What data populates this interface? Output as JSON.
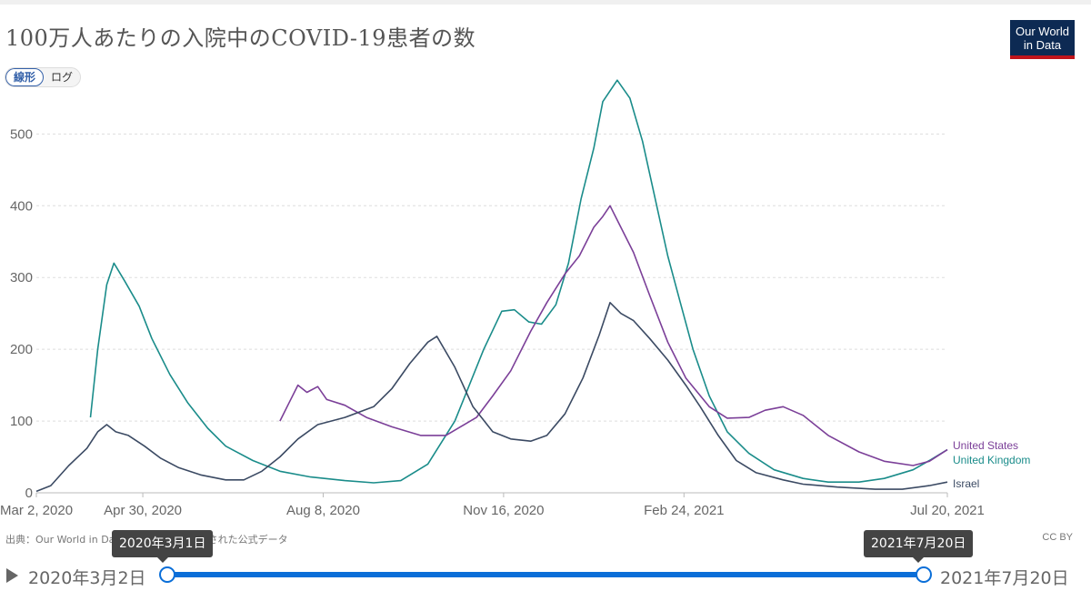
{
  "title": "100万人あたりの入院中のCOVID-19患者の数",
  "logo": {
    "line1": "Our World",
    "line2": "in Data"
  },
  "scale_toggle": {
    "linear": "線形",
    "log": "ログ",
    "selected": "linear"
  },
  "source_text": "出典：Our World in Data による各国の公表された公式データ",
  "license": "CC BY",
  "timeline": {
    "start_label": "2020年3月2日",
    "end_label": "2021年7月20日",
    "start_tooltip": "2020年3月1日",
    "end_tooltip": "2021年7月20日",
    "selection_start_fraction": 0,
    "selection_end_fraction": 1
  },
  "colors": {
    "United Kingdom": "#1a8c8a",
    "United States": "#7b3f98",
    "Israel": "#3b4a63"
  },
  "chart_data": {
    "type": "line",
    "title": "100万人あたりの入院中のCOVID-19患者の数",
    "xlabel": "",
    "ylabel": "",
    "x_type": "date",
    "xlim": [
      "2020-03-02",
      "2021-07-20"
    ],
    "ylim": [
      0,
      560
    ],
    "y_ticks": [
      0,
      100,
      200,
      300,
      400,
      500
    ],
    "x_ticks": [
      {
        "date": "2020-03-02",
        "label": "Mar 2, 2020"
      },
      {
        "date": "2020-04-30",
        "label": "Apr 30, 2020"
      },
      {
        "date": "2020-08-08",
        "label": "Aug 8, 2020"
      },
      {
        "date": "2020-11-16",
        "label": "Nov 16, 2020"
      },
      {
        "date": "2021-02-24",
        "label": "Feb 24, 2021"
      },
      {
        "date": "2021-07-20",
        "label": "Jul 20, 2021"
      }
    ],
    "grid": "horizontal dashed",
    "legend": "right end labels",
    "series": [
      {
        "name": "United Kingdom",
        "points": [
          [
            "2020-04-01",
            105
          ],
          [
            "2020-04-05",
            200
          ],
          [
            "2020-04-10",
            290
          ],
          [
            "2020-04-14",
            320
          ],
          [
            "2020-04-20",
            295
          ],
          [
            "2020-04-28",
            260
          ],
          [
            "2020-05-05",
            215
          ],
          [
            "2020-05-15",
            165
          ],
          [
            "2020-05-25",
            125
          ],
          [
            "2020-06-05",
            90
          ],
          [
            "2020-06-15",
            65
          ],
          [
            "2020-06-30",
            45
          ],
          [
            "2020-07-15",
            30
          ],
          [
            "2020-08-01",
            22
          ],
          [
            "2020-08-20",
            17
          ],
          [
            "2020-09-05",
            14
          ],
          [
            "2020-09-20",
            17
          ],
          [
            "2020-10-05",
            40
          ],
          [
            "2020-10-20",
            100
          ],
          [
            "2020-11-05",
            200
          ],
          [
            "2020-11-15",
            253
          ],
          [
            "2020-11-22",
            255
          ],
          [
            "2020-11-30",
            238
          ],
          [
            "2020-12-07",
            235
          ],
          [
            "2020-12-15",
            262
          ],
          [
            "2020-12-22",
            320
          ],
          [
            "2020-12-29",
            410
          ],
          [
            "2021-01-05",
            480
          ],
          [
            "2021-01-10",
            545
          ],
          [
            "2021-01-18",
            575
          ],
          [
            "2021-01-25",
            550
          ],
          [
            "2021-02-01",
            490
          ],
          [
            "2021-02-08",
            410
          ],
          [
            "2021-02-15",
            330
          ],
          [
            "2021-02-22",
            265
          ],
          [
            "2021-03-01",
            200
          ],
          [
            "2021-03-10",
            135
          ],
          [
            "2021-03-20",
            85
          ],
          [
            "2021-04-01",
            55
          ],
          [
            "2021-04-15",
            32
          ],
          [
            "2021-05-01",
            20
          ],
          [
            "2021-05-15",
            15
          ],
          [
            "2021-06-01",
            15
          ],
          [
            "2021-06-15",
            20
          ],
          [
            "2021-07-01",
            32
          ],
          [
            "2021-07-10",
            45
          ],
          [
            "2021-07-20",
            60
          ]
        ]
      },
      {
        "name": "United States",
        "points": [
          [
            "2020-07-15",
            100
          ],
          [
            "2020-07-20",
            125
          ],
          [
            "2020-07-25",
            150
          ],
          [
            "2020-07-30",
            140
          ],
          [
            "2020-08-05",
            148
          ],
          [
            "2020-08-10",
            130
          ],
          [
            "2020-08-20",
            122
          ],
          [
            "2020-09-01",
            105
          ],
          [
            "2020-09-15",
            92
          ],
          [
            "2020-10-01",
            80
          ],
          [
            "2020-10-15",
            80
          ],
          [
            "2020-11-01",
            105
          ],
          [
            "2020-11-10",
            135
          ],
          [
            "2020-11-20",
            170
          ],
          [
            "2020-12-01",
            225
          ],
          [
            "2020-12-10",
            265
          ],
          [
            "2020-12-20",
            305
          ],
          [
            "2020-12-28",
            330
          ],
          [
            "2021-01-05",
            370
          ],
          [
            "2021-01-10",
            385
          ],
          [
            "2021-01-14",
            400
          ],
          [
            "2021-01-20",
            370
          ],
          [
            "2021-01-27",
            335
          ],
          [
            "2021-02-05",
            275
          ],
          [
            "2021-02-15",
            210
          ],
          [
            "2021-02-25",
            160
          ],
          [
            "2021-03-10",
            120
          ],
          [
            "2021-03-20",
            104
          ],
          [
            "2021-04-01",
            105
          ],
          [
            "2021-04-10",
            115
          ],
          [
            "2021-04-20",
            120
          ],
          [
            "2021-05-01",
            108
          ],
          [
            "2021-05-15",
            80
          ],
          [
            "2021-06-01",
            57
          ],
          [
            "2021-06-15",
            44
          ],
          [
            "2021-07-01",
            38
          ],
          [
            "2021-07-10",
            44
          ],
          [
            "2021-07-20",
            60
          ]
        ]
      },
      {
        "name": "Israel",
        "points": [
          [
            "2020-03-02",
            2
          ],
          [
            "2020-03-10",
            10
          ],
          [
            "2020-03-20",
            38
          ],
          [
            "2020-03-30",
            62
          ],
          [
            "2020-04-05",
            85
          ],
          [
            "2020-04-10",
            95
          ],
          [
            "2020-04-15",
            85
          ],
          [
            "2020-04-22",
            80
          ],
          [
            "2020-05-01",
            65
          ],
          [
            "2020-05-10",
            48
          ],
          [
            "2020-05-20",
            35
          ],
          [
            "2020-06-01",
            25
          ],
          [
            "2020-06-15",
            18
          ],
          [
            "2020-06-25",
            18
          ],
          [
            "2020-07-05",
            30
          ],
          [
            "2020-07-15",
            50
          ],
          [
            "2020-07-25",
            75
          ],
          [
            "2020-08-05",
            95
          ],
          [
            "2020-08-20",
            105
          ],
          [
            "2020-09-05",
            120
          ],
          [
            "2020-09-15",
            145
          ],
          [
            "2020-09-25",
            180
          ],
          [
            "2020-10-05",
            210
          ],
          [
            "2020-10-10",
            218
          ],
          [
            "2020-10-20",
            175
          ],
          [
            "2020-10-30",
            120
          ],
          [
            "2020-11-10",
            85
          ],
          [
            "2020-11-20",
            75
          ],
          [
            "2020-12-01",
            72
          ],
          [
            "2020-12-10",
            80
          ],
          [
            "2020-12-20",
            110
          ],
          [
            "2020-12-30",
            160
          ],
          [
            "2021-01-08",
            220
          ],
          [
            "2021-01-14",
            265
          ],
          [
            "2021-01-20",
            250
          ],
          [
            "2021-01-27",
            240
          ],
          [
            "2021-02-05",
            215
          ],
          [
            "2021-02-15",
            185
          ],
          [
            "2021-02-25",
            150
          ],
          [
            "2021-03-05",
            120
          ],
          [
            "2021-03-15",
            80
          ],
          [
            "2021-03-25",
            45
          ],
          [
            "2021-04-05",
            28
          ],
          [
            "2021-04-20",
            18
          ],
          [
            "2021-05-01",
            12
          ],
          [
            "2021-05-20",
            8
          ],
          [
            "2021-06-10",
            5
          ],
          [
            "2021-06-25",
            5
          ],
          [
            "2021-07-10",
            10
          ],
          [
            "2021-07-20",
            15
          ]
        ]
      }
    ]
  }
}
